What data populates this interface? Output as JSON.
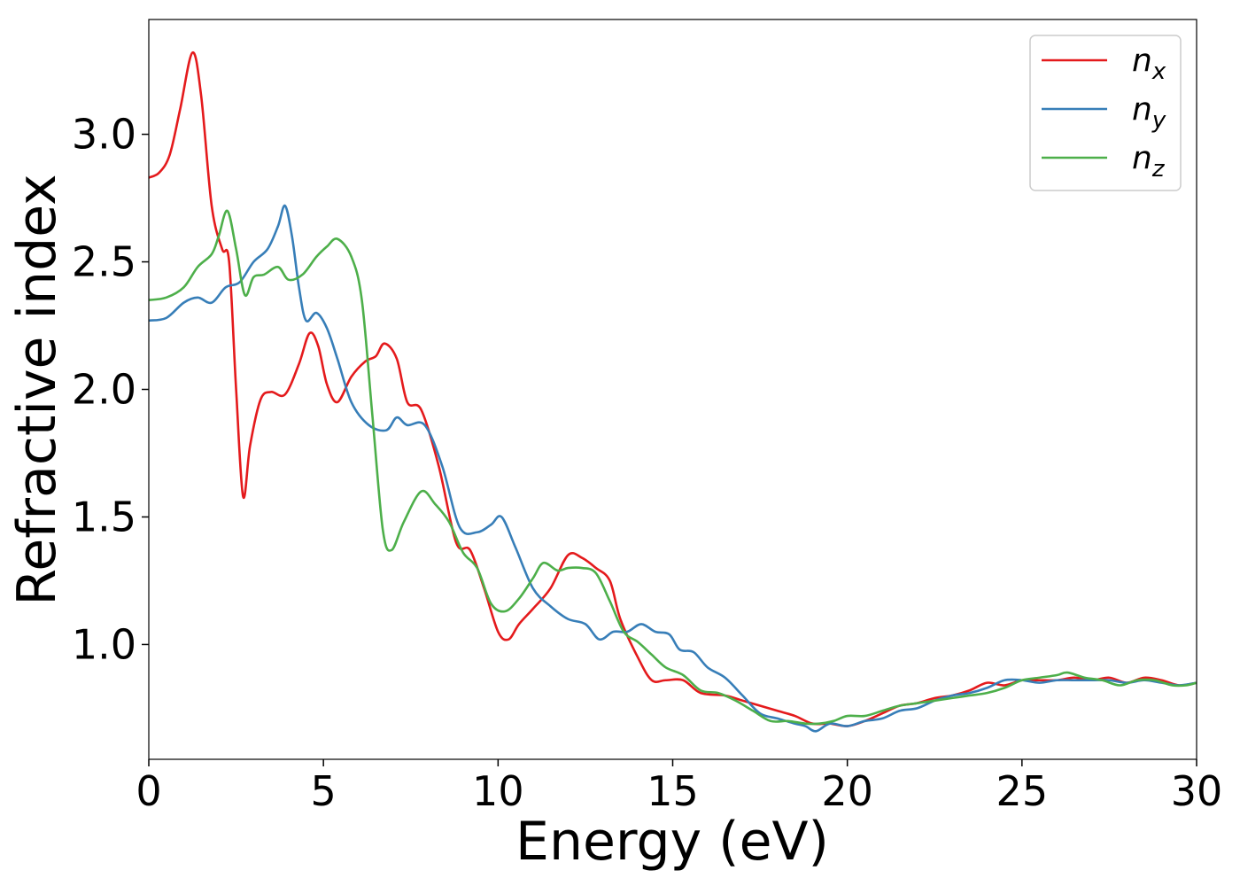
{
  "chart_data": {
    "type": "line",
    "title": "",
    "xlabel": "Energy (eV)",
    "ylabel": "Refractive index",
    "xlim": [
      0,
      30
    ],
    "ylim": [
      0.55,
      3.45
    ],
    "x_ticks": [
      "0",
      "5",
      "10",
      "15",
      "20",
      "25",
      "30"
    ],
    "y_ticks": [
      "1.0",
      "1.5",
      "2.0",
      "2.5",
      "3.0"
    ],
    "grid": false,
    "legend_position": "top-right",
    "series": [
      {
        "name": "n",
        "subscript": "x",
        "color": "#e41a1c",
        "points": [
          [
            0,
            2.83
          ],
          [
            0.3,
            2.85
          ],
          [
            0.6,
            2.92
          ],
          [
            0.9,
            3.1
          ],
          [
            1.25,
            3.32
          ],
          [
            1.5,
            3.15
          ],
          [
            1.8,
            2.72
          ],
          [
            2.1,
            2.55
          ],
          [
            2.3,
            2.5
          ],
          [
            2.5,
            2.0
          ],
          [
            2.7,
            1.58
          ],
          [
            2.9,
            1.78
          ],
          [
            3.2,
            1.96
          ],
          [
            3.5,
            1.99
          ],
          [
            3.9,
            1.98
          ],
          [
            4.3,
            2.1
          ],
          [
            4.6,
            2.22
          ],
          [
            4.85,
            2.17
          ],
          [
            5.1,
            2.02
          ],
          [
            5.4,
            1.95
          ],
          [
            5.8,
            2.05
          ],
          [
            6.2,
            2.11
          ],
          [
            6.5,
            2.13
          ],
          [
            6.75,
            2.18
          ],
          [
            7.1,
            2.12
          ],
          [
            7.4,
            1.95
          ],
          [
            7.8,
            1.92
          ],
          [
            8.3,
            1.7
          ],
          [
            8.8,
            1.4
          ],
          [
            9.2,
            1.37
          ],
          [
            9.6,
            1.22
          ],
          [
            10.0,
            1.05
          ],
          [
            10.3,
            1.02
          ],
          [
            10.6,
            1.08
          ],
          [
            11.0,
            1.14
          ],
          [
            11.5,
            1.22
          ],
          [
            12.0,
            1.35
          ],
          [
            12.4,
            1.34
          ],
          [
            12.8,
            1.3
          ],
          [
            13.2,
            1.25
          ],
          [
            13.5,
            1.1
          ],
          [
            14.0,
            0.95
          ],
          [
            14.4,
            0.86
          ],
          [
            14.8,
            0.86
          ],
          [
            15.3,
            0.86
          ],
          [
            15.8,
            0.81
          ],
          [
            16.5,
            0.8
          ],
          [
            17.0,
            0.78
          ],
          [
            17.5,
            0.76
          ],
          [
            18.0,
            0.74
          ],
          [
            18.5,
            0.72
          ],
          [
            19.0,
            0.69
          ],
          [
            19.5,
            0.69
          ],
          [
            20.0,
            0.68
          ],
          [
            20.5,
            0.7
          ],
          [
            21.0,
            0.73
          ],
          [
            21.5,
            0.76
          ],
          [
            22.0,
            0.77
          ],
          [
            22.5,
            0.79
          ],
          [
            23.0,
            0.8
          ],
          [
            23.5,
            0.82
          ],
          [
            24.0,
            0.85
          ],
          [
            24.5,
            0.84
          ],
          [
            25.0,
            0.86
          ],
          [
            25.5,
            0.86
          ],
          [
            26.0,
            0.86
          ],
          [
            26.5,
            0.87
          ],
          [
            27.0,
            0.86
          ],
          [
            27.5,
            0.87
          ],
          [
            28.0,
            0.85
          ],
          [
            28.5,
            0.87
          ],
          [
            29.0,
            0.86
          ],
          [
            29.5,
            0.84
          ],
          [
            30.0,
            0.85
          ]
        ]
      },
      {
        "name": "n",
        "subscript": "y",
        "color": "#377eb8",
        "points": [
          [
            0,
            2.27
          ],
          [
            0.5,
            2.28
          ],
          [
            1.0,
            2.34
          ],
          [
            1.4,
            2.36
          ],
          [
            1.8,
            2.34
          ],
          [
            2.2,
            2.4
          ],
          [
            2.6,
            2.42
          ],
          [
            3.0,
            2.5
          ],
          [
            3.4,
            2.55
          ],
          [
            3.7,
            2.64
          ],
          [
            3.9,
            2.72
          ],
          [
            4.1,
            2.6
          ],
          [
            4.3,
            2.4
          ],
          [
            4.5,
            2.27
          ],
          [
            4.8,
            2.3
          ],
          [
            5.1,
            2.24
          ],
          [
            5.4,
            2.12
          ],
          [
            5.8,
            1.95
          ],
          [
            6.3,
            1.86
          ],
          [
            6.8,
            1.84
          ],
          [
            7.1,
            1.89
          ],
          [
            7.4,
            1.86
          ],
          [
            7.9,
            1.86
          ],
          [
            8.4,
            1.7
          ],
          [
            8.9,
            1.46
          ],
          [
            9.4,
            1.44
          ],
          [
            9.8,
            1.47
          ],
          [
            10.1,
            1.5
          ],
          [
            10.5,
            1.38
          ],
          [
            11.0,
            1.22
          ],
          [
            11.5,
            1.15
          ],
          [
            12.0,
            1.1
          ],
          [
            12.5,
            1.08
          ],
          [
            12.9,
            1.02
          ],
          [
            13.3,
            1.05
          ],
          [
            13.7,
            1.05
          ],
          [
            14.1,
            1.08
          ],
          [
            14.5,
            1.05
          ],
          [
            14.9,
            1.04
          ],
          [
            15.2,
            0.98
          ],
          [
            15.6,
            0.97
          ],
          [
            16.0,
            0.91
          ],
          [
            16.5,
            0.87
          ],
          [
            17.0,
            0.8
          ],
          [
            17.5,
            0.73
          ],
          [
            18.0,
            0.71
          ],
          [
            18.5,
            0.69
          ],
          [
            18.8,
            0.68
          ],
          [
            19.1,
            0.66
          ],
          [
            19.5,
            0.69
          ],
          [
            20.0,
            0.68
          ],
          [
            20.5,
            0.7
          ],
          [
            21.0,
            0.71
          ],
          [
            21.5,
            0.74
          ],
          [
            22.0,
            0.75
          ],
          [
            22.5,
            0.78
          ],
          [
            23.0,
            0.8
          ],
          [
            23.5,
            0.81
          ],
          [
            24.0,
            0.83
          ],
          [
            24.5,
            0.86
          ],
          [
            25.0,
            0.86
          ],
          [
            25.5,
            0.85
          ],
          [
            26.0,
            0.86
          ],
          [
            26.5,
            0.86
          ],
          [
            27.0,
            0.86
          ],
          [
            27.5,
            0.86
          ],
          [
            28.0,
            0.85
          ],
          [
            28.5,
            0.86
          ],
          [
            29.0,
            0.85
          ],
          [
            29.5,
            0.84
          ],
          [
            30.0,
            0.85
          ]
        ]
      },
      {
        "name": "n",
        "subscript": "z",
        "color": "#4daf4a",
        "points": [
          [
            0,
            2.35
          ],
          [
            0.5,
            2.36
          ],
          [
            1.0,
            2.4
          ],
          [
            1.4,
            2.48
          ],
          [
            1.8,
            2.53
          ],
          [
            2.0,
            2.6
          ],
          [
            2.25,
            2.7
          ],
          [
            2.5,
            2.55
          ],
          [
            2.75,
            2.37
          ],
          [
            3.0,
            2.44
          ],
          [
            3.3,
            2.45
          ],
          [
            3.7,
            2.48
          ],
          [
            4.0,
            2.43
          ],
          [
            4.4,
            2.45
          ],
          [
            4.8,
            2.52
          ],
          [
            5.1,
            2.56
          ],
          [
            5.4,
            2.59
          ],
          [
            5.8,
            2.52
          ],
          [
            6.1,
            2.35
          ],
          [
            6.4,
            1.9
          ],
          [
            6.7,
            1.45
          ],
          [
            6.95,
            1.37
          ],
          [
            7.3,
            1.48
          ],
          [
            7.8,
            1.6
          ],
          [
            8.2,
            1.55
          ],
          [
            8.6,
            1.48
          ],
          [
            9.0,
            1.36
          ],
          [
            9.4,
            1.3
          ],
          [
            9.8,
            1.16
          ],
          [
            10.2,
            1.13
          ],
          [
            10.6,
            1.18
          ],
          [
            11.0,
            1.26
          ],
          [
            11.3,
            1.32
          ],
          [
            11.7,
            1.29
          ],
          [
            12.0,
            1.3
          ],
          [
            12.4,
            1.3
          ],
          [
            12.8,
            1.28
          ],
          [
            13.2,
            1.17
          ],
          [
            13.6,
            1.05
          ],
          [
            14.0,
            1.01
          ],
          [
            14.4,
            0.96
          ],
          [
            14.8,
            0.91
          ],
          [
            15.3,
            0.88
          ],
          [
            15.8,
            0.82
          ],
          [
            16.3,
            0.81
          ],
          [
            16.8,
            0.78
          ],
          [
            17.3,
            0.74
          ],
          [
            17.8,
            0.7
          ],
          [
            18.3,
            0.7
          ],
          [
            18.8,
            0.69
          ],
          [
            19.2,
            0.69
          ],
          [
            19.6,
            0.7
          ],
          [
            20.0,
            0.72
          ],
          [
            20.5,
            0.72
          ],
          [
            21.0,
            0.74
          ],
          [
            21.5,
            0.76
          ],
          [
            22.0,
            0.77
          ],
          [
            22.5,
            0.78
          ],
          [
            23.0,
            0.79
          ],
          [
            23.5,
            0.8
          ],
          [
            24.0,
            0.81
          ],
          [
            24.5,
            0.83
          ],
          [
            25.0,
            0.86
          ],
          [
            25.5,
            0.87
          ],
          [
            26.0,
            0.88
          ],
          [
            26.3,
            0.89
          ],
          [
            26.8,
            0.87
          ],
          [
            27.3,
            0.86
          ],
          [
            27.8,
            0.84
          ],
          [
            28.3,
            0.86
          ],
          [
            28.8,
            0.86
          ],
          [
            29.3,
            0.84
          ],
          [
            29.7,
            0.84
          ],
          [
            30.0,
            0.85
          ]
        ]
      }
    ]
  }
}
